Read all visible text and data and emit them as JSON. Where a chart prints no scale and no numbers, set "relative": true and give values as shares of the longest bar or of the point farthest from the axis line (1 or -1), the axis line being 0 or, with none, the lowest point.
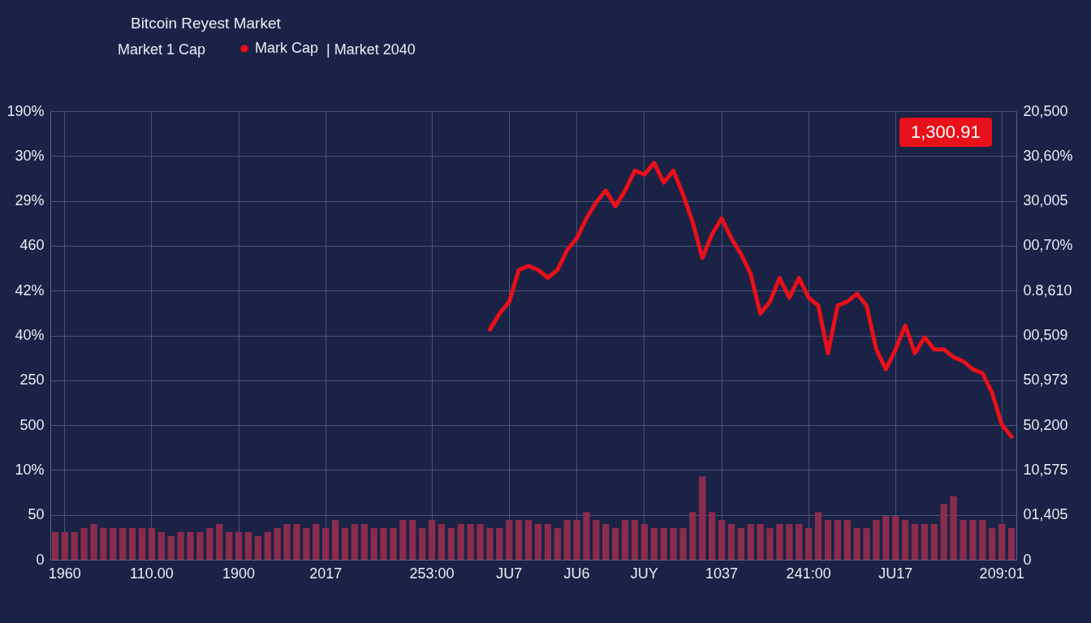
{
  "chart_data": {
    "type": "line",
    "title": "Bitcoin Reyest Market",
    "relative": true,
    "annotations": [
      "Market 1 Cap",
      "| Market 2040",
      "1,300.91",
      "190%",
      "30%",
      "29%",
      "460",
      "42%",
      "40%",
      "250",
      "500",
      "10%",
      "50",
      "0",
      "20,500",
      "30,60%",
      "30,005",
      "00,70%",
      "0.8,610",
      "00,509",
      "50,973",
      "50,200",
      "10,575",
      "01,405",
      "0"
    ],
    "categories": [
      null,
      "1960",
      null,
      null,
      null,
      null,
      null,
      null,
      null,
      null,
      "110.00",
      null,
      null,
      null,
      null,
      null,
      null,
      null,
      null,
      "1900",
      null,
      null,
      null,
      null,
      null,
      null,
      null,
      null,
      "2017",
      null,
      null,
      null,
      null,
      null,
      null,
      null,
      null,
      null,
      null,
      "253:00",
      null,
      null,
      null,
      null,
      null,
      null,
      null,
      "JU7",
      null,
      null,
      null,
      null,
      null,
      null,
      "JU6",
      null,
      null,
      null,
      null,
      null,
      null,
      "JUY",
      null,
      null,
      null,
      null,
      null,
      null,
      null,
      "1037",
      null,
      null,
      null,
      null,
      null,
      null,
      null,
      null,
      "241:00",
      null,
      null,
      null,
      null,
      null,
      null,
      null,
      null,
      "JU17",
      null,
      null,
      null,
      null,
      null,
      null,
      null,
      null,
      null,
      null,
      "209:01",
      null
    ],
    "grid": true,
    "legend": "top left",
    "series": [
      {
        "type": "bar",
        "color": "#8a2c4c",
        "values": [
          0.07,
          0.07,
          0.07,
          0.08,
          0.09,
          0.08,
          0.08,
          0.08,
          0.08,
          0.08,
          0.08,
          0.07,
          0.06,
          0.07,
          0.07,
          0.07,
          0.08,
          0.09,
          0.07,
          0.07,
          0.07,
          0.06,
          0.07,
          0.08,
          0.09,
          0.09,
          0.08,
          0.09,
          0.08,
          0.1,
          0.08,
          0.09,
          0.09,
          0.08,
          0.08,
          0.08,
          0.1,
          0.1,
          0.08,
          0.1,
          0.09,
          0.08,
          0.09,
          0.09,
          0.09,
          0.08,
          0.08,
          0.1,
          0.1,
          0.1,
          0.09,
          0.09,
          0.08,
          0.1,
          0.1,
          0.12,
          0.1,
          0.09,
          0.08,
          0.1,
          0.1,
          0.09,
          0.08,
          0.08,
          0.08,
          0.08,
          0.12,
          0.21,
          0.12,
          0.1,
          0.09,
          0.08,
          0.09,
          0.09,
          0.08,
          0.09,
          0.09,
          0.09,
          0.08,
          0.12,
          0.1,
          0.1,
          0.1,
          0.08,
          0.08,
          0.1,
          0.11,
          0.11,
          0.1,
          0.09,
          0.09,
          0.09,
          0.14,
          0.16,
          0.1,
          0.1,
          0.1,
          0.08,
          0.09,
          0.08
        ]
      },
      {
        "type": "line",
        "name": "Mark Cap",
        "color": "#e8101a",
        "values": [
          null,
          null,
          null,
          null,
          null,
          null,
          null,
          null,
          null,
          null,
          null,
          null,
          null,
          null,
          null,
          null,
          null,
          null,
          null,
          null,
          null,
          null,
          null,
          null,
          null,
          null,
          null,
          null,
          null,
          null,
          null,
          null,
          null,
          null,
          null,
          null,
          null,
          null,
          null,
          null,
          null,
          null,
          null,
          null,
          null,
          0.58,
          0.62,
          0.65,
          0.73,
          0.74,
          0.73,
          0.71,
          0.73,
          0.78,
          0.81,
          0.86,
          0.9,
          0.93,
          0.89,
          0.93,
          0.98,
          0.97,
          1,
          0.95,
          0.98,
          0.92,
          0.85,
          0.76,
          0.82,
          0.86,
          0.81,
          0.77,
          0.72,
          0.62,
          0.65,
          0.71,
          0.66,
          0.71,
          0.66,
          0.64,
          0.52,
          0.64,
          0.65,
          0.67,
          0.64,
          0.53,
          0.48,
          0.53,
          0.59,
          0.52,
          0.56,
          0.53,
          0.53,
          0.51,
          0.5,
          0.48,
          0.47,
          0.42,
          0.34,
          0.31
        ]
      }
    ]
  }
}
